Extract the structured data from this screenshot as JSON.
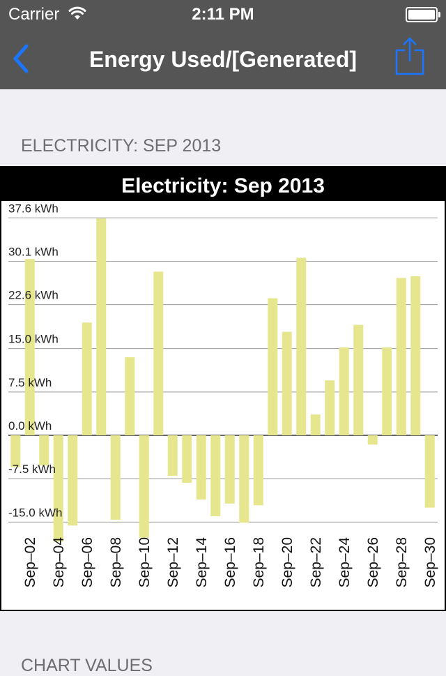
{
  "status_bar": {
    "carrier": "Carrier",
    "time": "2:11 PM"
  },
  "nav": {
    "title": "Energy Used/[Generated]"
  },
  "section": {
    "header": "ELECTRICITY: SEP 2013",
    "next_header": "CHART VALUES"
  },
  "colors": {
    "bar": "#e6e68f",
    "nav_bg": "#555555",
    "accent": "#1a75ff"
  },
  "chart_data": {
    "type": "bar",
    "title": "Electricity: Sep 2013",
    "unit": "kWh",
    "ylim": [
      -18.5,
      38.5
    ],
    "y_ticks": [
      {
        "value": -15.0,
        "label": "-15.0 kWh"
      },
      {
        "value": -7.5,
        "label": "-7.5 kWh"
      },
      {
        "value": 0.0,
        "label": "0.0 kWh"
      },
      {
        "value": 7.5,
        "label": "7.5 kWh"
      },
      {
        "value": 15.0,
        "label": "15.0 kWh"
      },
      {
        "value": 22.6,
        "label": "22.6 kWh"
      },
      {
        "value": 30.1,
        "label": "30.1 kWh"
      },
      {
        "value": 37.6,
        "label": "37.6 kWh"
      }
    ],
    "grid": true,
    "categories": [
      "Sep–01",
      "Sep–02",
      "Sep–03",
      "Sep–04",
      "Sep–05",
      "Sep–06",
      "Sep–07",
      "Sep–08",
      "Sep–09",
      "Sep–10",
      "Sep–11",
      "Sep–12",
      "Sep–13",
      "Sep–14",
      "Sep–15",
      "Sep–16",
      "Sep–17",
      "Sep–18",
      "Sep–19",
      "Sep–20",
      "Sep–21",
      "Sep–22",
      "Sep–23",
      "Sep–24",
      "Sep–25",
      "Sep–26",
      "Sep–27",
      "Sep–28",
      "Sep–29",
      "Sep–30"
    ],
    "x_tick_labels": [
      "Sep–02",
      "Sep–04",
      "Sep–06",
      "Sep–08",
      "Sep–10",
      "Sep–12",
      "Sep–14",
      "Sep–16",
      "Sep–18",
      "Sep–20",
      "Sep–22",
      "Sep–24",
      "Sep–26",
      "Sep–28",
      "Sep–30"
    ],
    "values": [
      -5.5,
      30.5,
      -5.2,
      -18.4,
      -15.6,
      19.5,
      37.5,
      -14.6,
      13.5,
      -17.7,
      28.3,
      -7.0,
      -8.2,
      -11.1,
      -14.0,
      -11.8,
      -15.1,
      -12.1,
      23.7,
      17.9,
      30.7,
      3.6,
      9.5,
      15.2,
      19.1,
      -1.6,
      15.2,
      27.2,
      27.5,
      -12.5
    ]
  }
}
